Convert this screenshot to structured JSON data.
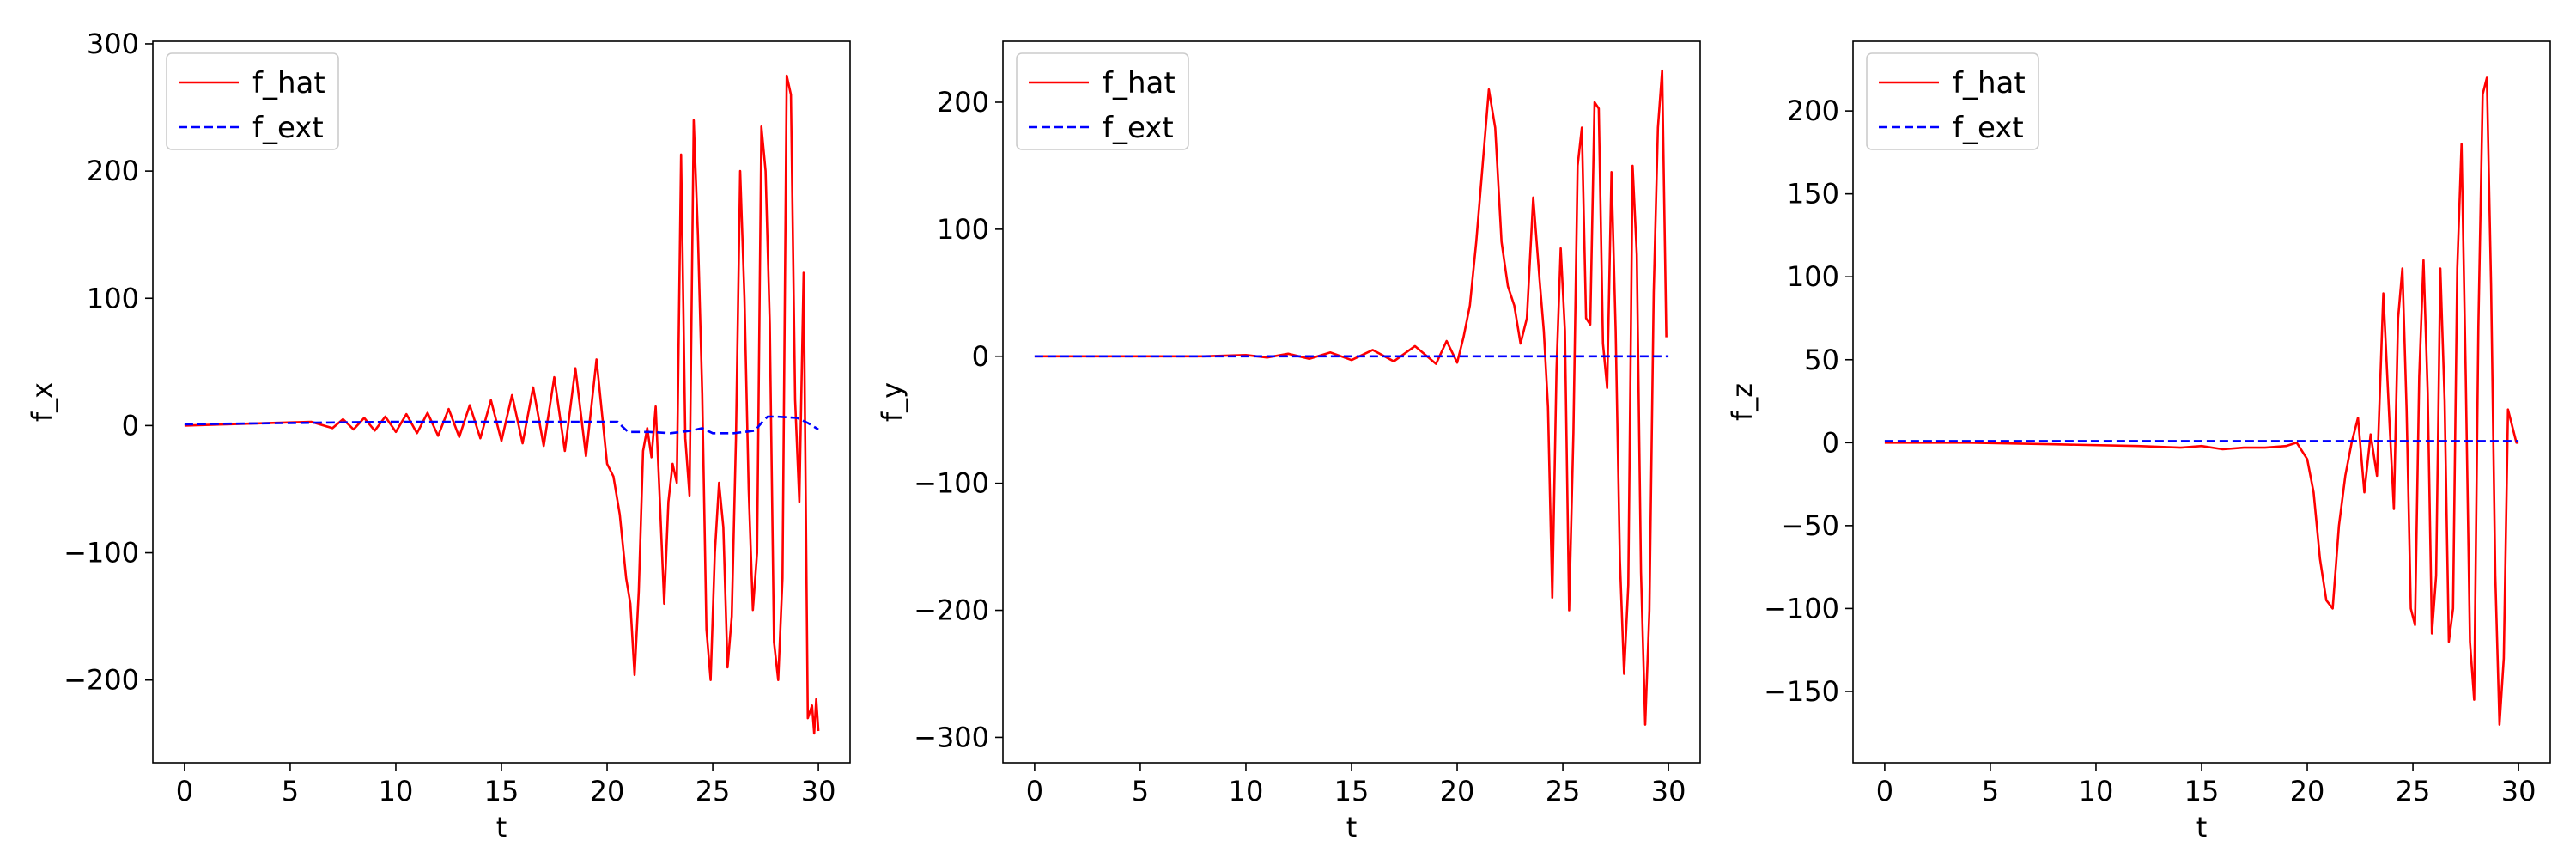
{
  "chart_data": [
    {
      "type": "line",
      "xlabel": "t",
      "ylabel": "f_x",
      "xlim": [
        -1.5,
        31.5
      ],
      "ylim": [
        -265,
        302
      ],
      "xticks": [
        0,
        5,
        10,
        15,
        20,
        25,
        30
      ],
      "yticks": [
        -200,
        -100,
        0,
        100,
        200,
        300
      ],
      "ytick_labels": [
        "−200",
        "−100",
        "0",
        "100",
        "200",
        "300"
      ],
      "legend": "top-left",
      "series": [
        {
          "name": "f_hat",
          "color": "#ff0000",
          "style": "solid",
          "x": [
            0,
            2,
            4,
            6,
            7,
            7.5,
            8,
            8.5,
            9,
            9.5,
            10,
            10.5,
            11,
            11.5,
            12,
            12.5,
            13,
            13.5,
            14,
            14.5,
            15,
            15.5,
            16,
            16.5,
            17,
            17.5,
            18,
            18.5,
            19,
            19.5,
            20,
            20.3,
            20.6,
            20.9,
            21.1,
            21.3,
            21.5,
            21.7,
            21.9,
            22.1,
            22.3,
            22.5,
            22.7,
            22.9,
            23.1,
            23.3,
            23.5,
            23.7,
            23.9,
            24.1,
            24.3,
            24.5,
            24.7,
            24.9,
            25.1,
            25.3,
            25.5,
            25.7,
            25.9,
            26.1,
            26.3,
            26.5,
            26.7,
            26.9,
            27.1,
            27.3,
            27.5,
            27.7,
            27.9,
            28.1,
            28.3,
            28.5,
            28.7,
            28.9,
            29.1,
            29.3,
            29.5,
            29.7,
            29.8,
            29.9,
            30
          ],
          "y": [
            0,
            1,
            2,
            3,
            -2,
            5,
            -3,
            6,
            -4,
            7,
            -5,
            9,
            -6,
            10,
            -8,
            13,
            -9,
            16,
            -10,
            20,
            -12,
            24,
            -14,
            30,
            -16,
            38,
            -20,
            45,
            -24,
            52,
            -30,
            -40,
            -70,
            -120,
            -140,
            -196,
            -130,
            -20,
            -2,
            -25,
            15,
            -60,
            -140,
            -60,
            -30,
            -45,
            213,
            -10,
            -55,
            240,
            150,
            25,
            -160,
            -200,
            -100,
            -45,
            -80,
            -190,
            -150,
            -10,
            200,
            100,
            -50,
            -145,
            -100,
            235,
            200,
            80,
            -170,
            -200,
            -120,
            275,
            260,
            20,
            -60,
            120,
            -230,
            -220,
            -242,
            -215,
            -240
          ]
        },
        {
          "name": "f_ext",
          "color": "#0000ff",
          "style": "dashed",
          "x": [
            0,
            5,
            10,
            15,
            18,
            20,
            20.5,
            20.8,
            21,
            22,
            23,
            24,
            24.5,
            25,
            26,
            27,
            27.3,
            27.6,
            28,
            29,
            29.5,
            30
          ],
          "y": [
            1,
            2,
            3,
            3,
            3,
            3,
            3,
            -2,
            -5,
            -5,
            -6,
            -4,
            -2,
            -6,
            -6,
            -4,
            2,
            7,
            7,
            6,
            2,
            -3
          ]
        }
      ]
    },
    {
      "type": "line",
      "xlabel": "t",
      "ylabel": "f_y",
      "xlim": [
        -1.5,
        31.5
      ],
      "ylim": [
        -320,
        248
      ],
      "xticks": [
        0,
        5,
        10,
        15,
        20,
        25,
        30
      ],
      "yticks": [
        -300,
        -200,
        -100,
        0,
        100,
        200
      ],
      "ytick_labels": [
        "−300",
        "−200",
        "−100",
        "0",
        "100",
        "200"
      ],
      "legend": "top-left",
      "series": [
        {
          "name": "f_hat",
          "color": "#ff0000",
          "style": "solid",
          "x": [
            0,
            4,
            8,
            10,
            11,
            12,
            13,
            14,
            15,
            16,
            17,
            18,
            19,
            19.5,
            20,
            20.3,
            20.6,
            20.9,
            21.2,
            21.5,
            21.8,
            22.1,
            22.4,
            22.7,
            23,
            23.3,
            23.6,
            23.9,
            24.1,
            24.3,
            24.5,
            24.7,
            24.9,
            25.1,
            25.3,
            25.5,
            25.7,
            25.9,
            26.1,
            26.3,
            26.5,
            26.7,
            26.9,
            27.1,
            27.3,
            27.5,
            27.7,
            27.9,
            28.1,
            28.3,
            28.5,
            28.7,
            28.9,
            29.1,
            29.3,
            29.5,
            29.7,
            29.9
          ],
          "y": [
            0,
            0,
            0,
            1,
            -1,
            2,
            -2,
            3,
            -3,
            5,
            -4,
            8,
            -6,
            12,
            -5,
            15,
            40,
            90,
            150,
            210,
            180,
            90,
            55,
            40,
            10,
            30,
            125,
            60,
            20,
            -40,
            -190,
            -10,
            85,
            20,
            -200,
            -60,
            150,
            180,
            30,
            25,
            200,
            195,
            10,
            -25,
            145,
            20,
            -160,
            -250,
            -180,
            150,
            80,
            -170,
            -290,
            -200,
            50,
            180,
            225,
            15
          ]
        },
        {
          "name": "f_ext",
          "color": "#0000ff",
          "style": "dashed",
          "x": [
            0,
            10,
            20,
            30
          ],
          "y": [
            0,
            0,
            0,
            0
          ]
        }
      ]
    },
    {
      "type": "line",
      "xlabel": "t",
      "ylabel": "f_z",
      "xlim": [
        -1.5,
        31.5
      ],
      "ylim": [
        -193,
        242
      ],
      "xticks": [
        0,
        5,
        10,
        15,
        20,
        25,
        30
      ],
      "yticks": [
        -150,
        -100,
        -50,
        0,
        50,
        100,
        150,
        200
      ],
      "ytick_labels": [
        "−150",
        "−100",
        "−50",
        "0",
        "50",
        "100",
        "150",
        "200"
      ],
      "legend": "top-left",
      "series": [
        {
          "name": "f_hat",
          "color": "#ff0000",
          "style": "solid",
          "x": [
            0,
            4,
            8,
            12,
            14,
            15,
            16,
            17,
            18,
            19,
            19.5,
            20,
            20.3,
            20.6,
            20.9,
            21.2,
            21.5,
            21.8,
            22.1,
            22.4,
            22.7,
            23,
            23.3,
            23.6,
            23.9,
            24.1,
            24.3,
            24.5,
            24.7,
            24.9,
            25.1,
            25.3,
            25.5,
            25.7,
            25.9,
            26.1,
            26.3,
            26.5,
            26.7,
            26.9,
            27.1,
            27.3,
            27.5,
            27.7,
            27.9,
            28.1,
            28.3,
            28.5,
            28.7,
            28.9,
            29.1,
            29.3,
            29.5,
            29.7,
            29.9,
            30
          ],
          "y": [
            0,
            0,
            -1,
            -2,
            -3,
            -2,
            -4,
            -3,
            -3,
            -2,
            0,
            -10,
            -30,
            -70,
            -95,
            -100,
            -50,
            -20,
            0,
            15,
            -30,
            5,
            -20,
            90,
            10,
            -40,
            75,
            105,
            20,
            -100,
            -110,
            40,
            110,
            30,
            -115,
            -80,
            105,
            25,
            -120,
            -100,
            105,
            180,
            40,
            -120,
            -155,
            70,
            210,
            220,
            95,
            -80,
            -170,
            -130,
            20,
            10,
            0,
            0
          ]
        },
        {
          "name": "f_ext",
          "color": "#0000ff",
          "style": "dashed",
          "x": [
            0,
            10,
            20,
            30
          ],
          "y": [
            1,
            1,
            1,
            1
          ]
        }
      ]
    }
  ]
}
